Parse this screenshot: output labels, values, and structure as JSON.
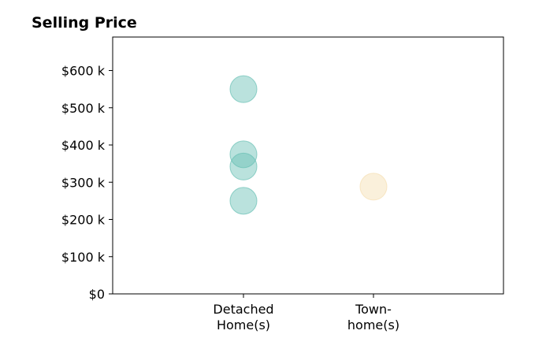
{
  "chart_data": {
    "type": "scatter",
    "title": "Selling Price",
    "xlabel": "",
    "ylabel": "",
    "categories": [
      [
        "Detached",
        "Home(s)"
      ],
      [
        "Town-",
        "home(s)"
      ]
    ],
    "ylim": [
      0,
      690
    ],
    "y_ticks": [
      0,
      100,
      200,
      300,
      400,
      500,
      600
    ],
    "y_tick_labels": [
      "$0",
      "$100 k",
      "$200 k",
      "$300 k",
      "$400 k",
      "$500 k",
      "$600 k"
    ],
    "grid": false,
    "legend": "none",
    "series": [
      {
        "category": 0,
        "color": "#66bfb3",
        "values": [
          550,
          375,
          342,
          250
        ]
      },
      {
        "category": 1,
        "color": "#f5deb0",
        "values": [
          288
        ]
      }
    ]
  }
}
